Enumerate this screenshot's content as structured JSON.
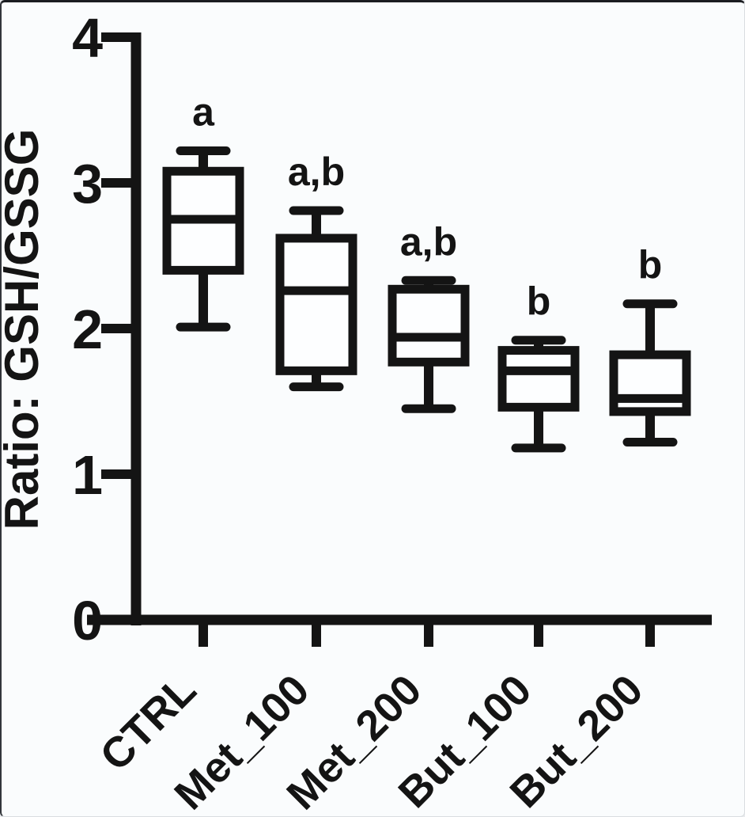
{
  "frame": {
    "background": "#fafcfd",
    "ink": "#141414"
  },
  "chart_data": {
    "type": "box",
    "title": "",
    "ylabel": "Ratio: GSH/GSSG",
    "xlabel": "",
    "ylim": [
      0,
      4
    ],
    "yticks": [
      0,
      1,
      2,
      3,
      4
    ],
    "grid": false,
    "legend": "none",
    "box_fill": "#fdfeff",
    "box_stroke": "#141414",
    "categories": [
      "CTRL",
      "Met_100",
      "Met_200",
      "But_100",
      "But_200"
    ],
    "series": [
      {
        "category": "CTRL",
        "min": 2.01,
        "q1": 2.4,
        "median": 2.75,
        "q3": 3.08,
        "max": 3.22,
        "sig_label": "a"
      },
      {
        "category": "Met_100",
        "min": 1.6,
        "q1": 1.71,
        "median": 2.26,
        "q3": 2.62,
        "max": 2.81,
        "sig_label": "a,b"
      },
      {
        "category": "Met_200",
        "min": 1.45,
        "q1": 1.77,
        "median": 1.94,
        "q3": 2.27,
        "max": 2.33,
        "sig_label": "a,b"
      },
      {
        "category": "But_100",
        "min": 1.18,
        "q1": 1.46,
        "median": 1.71,
        "q3": 1.85,
        "max": 1.92,
        "sig_label": "b"
      },
      {
        "category": "But_200",
        "min": 1.22,
        "q1": 1.43,
        "median": 1.52,
        "q3": 1.82,
        "max": 2.17,
        "sig_label": "b"
      }
    ]
  }
}
